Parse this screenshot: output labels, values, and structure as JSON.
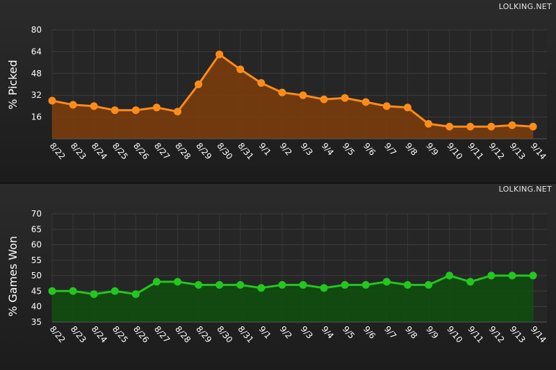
{
  "watermark": "LOLKING.NET",
  "chart_data": [
    {
      "type": "area",
      "ylabel": "% Picked",
      "ylim": [
        0,
        80
      ],
      "yticks": [
        16,
        32,
        48,
        64,
        80
      ],
      "grid": true,
      "color": "#ff8c1a",
      "fill": "#7a3d0c",
      "categories": [
        "8/22",
        "8/23",
        "8/24",
        "8/25",
        "8/26",
        "8/27",
        "8/28",
        "8/29",
        "8/30",
        "8/31",
        "9/1",
        "9/2",
        "9/3",
        "9/4",
        "9/5",
        "9/6",
        "9/7",
        "9/8",
        "9/9",
        "9/10",
        "9/11",
        "9/12",
        "9/13",
        "9/14"
      ],
      "values": [
        28,
        25,
        24,
        21,
        21,
        23,
        20,
        40,
        62,
        51,
        41,
        34,
        32,
        29,
        30,
        27,
        24,
        23,
        11,
        9,
        9,
        9,
        10,
        9
      ]
    },
    {
      "type": "area",
      "ylabel": "% Games Won",
      "ylim": [
        30,
        70
      ],
      "yticks": [
        35,
        40,
        45,
        50,
        55,
        60,
        65,
        70
      ],
      "grid": true,
      "color": "#22c81e",
      "fill": "#104e10",
      "categories": [
        "8/22",
        "8/23",
        "8/24",
        "8/25",
        "8/26",
        "8/27",
        "8/28",
        "8/29",
        "8/30",
        "8/31",
        "9/1",
        "9/2",
        "9/3",
        "9/4",
        "9/5",
        "9/6",
        "9/7",
        "9/8",
        "9/9",
        "9/10",
        "9/11",
        "9/12",
        "9/13",
        "9/14"
      ],
      "values": [
        45,
        45,
        44,
        45,
        44,
        48,
        48,
        47,
        47,
        47,
        46,
        47,
        47,
        46,
        47,
        47,
        48,
        47,
        47,
        50,
        48,
        50,
        50,
        50
      ]
    }
  ]
}
